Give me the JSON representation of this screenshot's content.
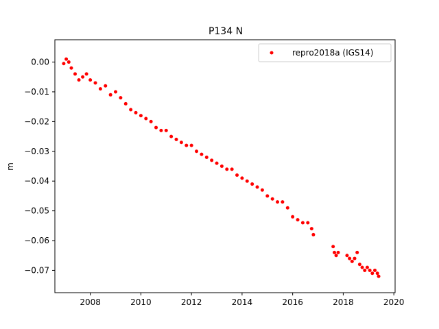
{
  "chart_data": {
    "type": "scatter",
    "title": "P134 N",
    "xlabel": "",
    "ylabel": "m",
    "xlim": [
      2006.6,
      2020.05
    ],
    "ylim": [
      -0.0775,
      0.0075
    ],
    "xticks": [
      2008,
      2010,
      2012,
      2014,
      2016,
      2018,
      2020
    ],
    "xtick_labels": [
      "2008",
      "2010",
      "2012",
      "2014",
      "2016",
      "2018",
      "2020"
    ],
    "yticks": [
      0.0,
      -0.01,
      -0.02,
      -0.03,
      -0.04,
      -0.05,
      -0.06,
      -0.07
    ],
    "ytick_labels": [
      "0.00",
      "−0.01",
      "−0.02",
      "−0.03",
      "−0.04",
      "−0.05",
      "−0.06",
      "−0.07"
    ],
    "legend_position": "top-right",
    "grid": false,
    "series": [
      {
        "name": "repro2018a (IGS14)",
        "color": "#ff0000",
        "marker": "circle",
        "x": [
          2006.95,
          2007.05,
          2007.15,
          2007.25,
          2007.4,
          2007.55,
          2007.7,
          2007.85,
          2008.0,
          2008.2,
          2008.4,
          2008.6,
          2008.8,
          2009.0,
          2009.2,
          2009.4,
          2009.6,
          2009.8,
          2010.0,
          2010.2,
          2010.4,
          2010.6,
          2010.8,
          2011.0,
          2011.2,
          2011.4,
          2011.6,
          2011.8,
          2012.0,
          2012.2,
          2012.4,
          2012.6,
          2012.8,
          2013.0,
          2013.2,
          2013.4,
          2013.6,
          2013.8,
          2014.0,
          2014.2,
          2014.4,
          2014.6,
          2014.8,
          2015.0,
          2015.2,
          2015.4,
          2015.6,
          2015.8,
          2016.0,
          2016.2,
          2016.4,
          2016.6,
          2016.75,
          2016.82,
          2017.6,
          2017.65,
          2017.72,
          2017.8,
          2018.15,
          2018.25,
          2018.35,
          2018.45,
          2018.55,
          2018.65,
          2018.75,
          2018.85,
          2018.95,
          2019.05,
          2019.15,
          2019.25,
          2019.35,
          2019.4
        ],
        "y": [
          -0.0005,
          0.001,
          0.0,
          -0.002,
          -0.004,
          -0.006,
          -0.005,
          -0.004,
          -0.006,
          -0.007,
          -0.009,
          -0.008,
          -0.011,
          -0.01,
          -0.012,
          -0.014,
          -0.016,
          -0.017,
          -0.018,
          -0.019,
          -0.02,
          -0.022,
          -0.023,
          -0.023,
          -0.025,
          -0.026,
          -0.027,
          -0.028,
          -0.028,
          -0.03,
          -0.031,
          -0.032,
          -0.033,
          -0.034,
          -0.035,
          -0.036,
          -0.036,
          -0.038,
          -0.039,
          -0.04,
          -0.041,
          -0.042,
          -0.043,
          -0.045,
          -0.046,
          -0.047,
          -0.047,
          -0.049,
          -0.052,
          -0.053,
          -0.054,
          -0.054,
          -0.056,
          -0.058,
          -0.062,
          -0.064,
          -0.065,
          -0.064,
          -0.065,
          -0.066,
          -0.067,
          -0.066,
          -0.064,
          -0.068,
          -0.069,
          -0.07,
          -0.069,
          -0.07,
          -0.071,
          -0.07,
          -0.071,
          -0.072
        ]
      }
    ]
  }
}
